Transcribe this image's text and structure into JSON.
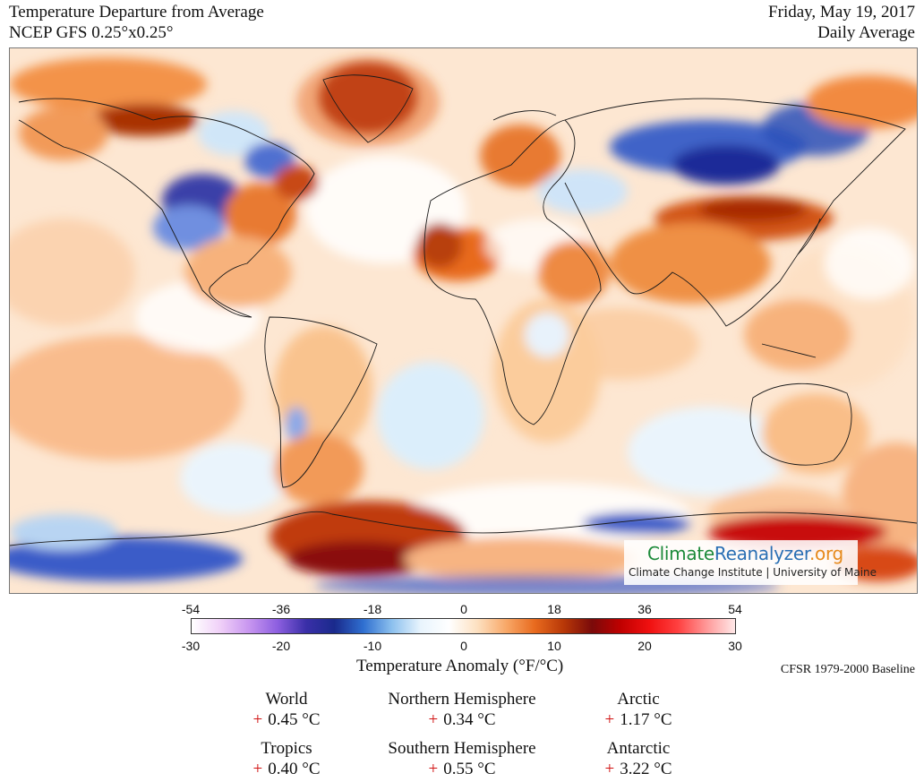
{
  "header": {
    "title": "Temperature Departure from Average",
    "subtitle": "NCEP GFS 0.25°x0.25°",
    "date": "Friday, May 19, 2017",
    "period": "Daily Average"
  },
  "logo": {
    "part1": "Climate",
    "part2": "Reanalyzer",
    "part3": ".org",
    "subtitle": "Climate Change Institute | University of Maine"
  },
  "legend": {
    "fahrenheit_ticks": [
      "-54",
      "-36",
      "-18",
      "0",
      "18",
      "36",
      "54"
    ],
    "celsius_ticks": [
      "-30",
      "-20",
      "-10",
      "0",
      "10",
      "20",
      "30"
    ],
    "label": "Temperature Anomaly (°F/°C)",
    "baseline": "CFSR 1979-2000 Baseline",
    "colors": [
      "#ffffff",
      "#f0d0f8",
      "#c896f0",
      "#8d5fe0",
      "#3a2fa8",
      "#1a2a8c",
      "#2f6fd0",
      "#8cc0ee",
      "#e8f4fd",
      "#ffffff",
      "#fde0c0",
      "#f8a868",
      "#e86a1e",
      "#b83808",
      "#7a0a0a",
      "#c00000",
      "#f01010",
      "#ff4040",
      "#ff9898",
      "#ffe8e8"
    ]
  },
  "stats": [
    {
      "name": "World",
      "sign": "+",
      "value": "0.45 °C"
    },
    {
      "name": "Northern Hemisphere",
      "sign": "+",
      "value": "0.34 °C"
    },
    {
      "name": "Arctic",
      "sign": "+",
      "value": "1.17 °C"
    },
    {
      "name": "Tropics",
      "sign": "+",
      "value": "0.40 °C"
    },
    {
      "name": "Southern Hemisphere",
      "sign": "+",
      "value": "0.55 °C"
    },
    {
      "name": "Antarctic",
      "sign": "+",
      "value": "3.22 °C"
    }
  ]
}
